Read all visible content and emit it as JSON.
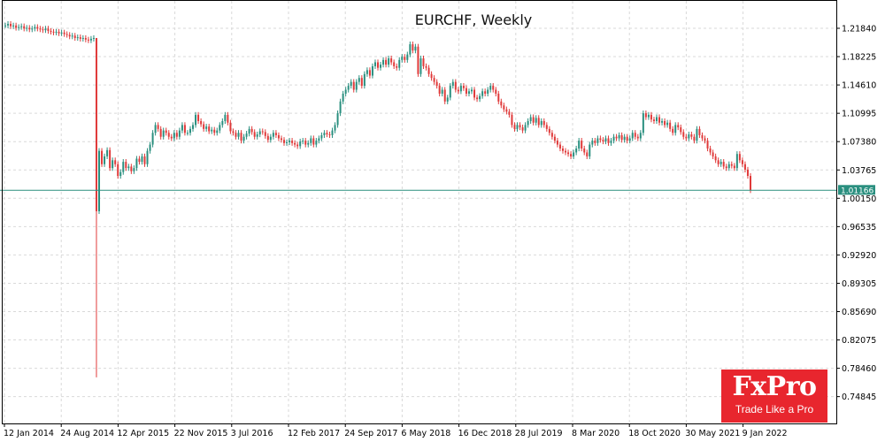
{
  "chart_data": {
    "type": "line",
    "title": "EURCHF, Weekly",
    "xlabel": "",
    "ylabel": "",
    "x_tick_labels": [
      "12 Jan 2014",
      "24 Aug 2014",
      "12 Apr 2015",
      "22 Nov 2015",
      "3 Jul 2016",
      "12 Feb 2017",
      "24 Sep 2017",
      "6 May 2018",
      "16 Dec 2018",
      "28 Jul 2019",
      "8 Mar 2020",
      "18 Oct 2020",
      "30 May 2021",
      "9 Jan 2022"
    ],
    "y_tick_labels": [
      "1.21840",
      "1.18225",
      "1.14610",
      "1.10995",
      "1.07380",
      "1.03765",
      "1.00150",
      "0.96535",
      "0.92920",
      "0.89305",
      "0.85690",
      "0.82075",
      "0.78460",
      "0.74845"
    ],
    "ylim": [
      0.725,
      1.24
    ],
    "current_price": "1.01166",
    "grid": true,
    "series": [
      {
        "values": [
          1.222,
          1.224,
          1.221,
          1.222,
          1.219,
          1.22,
          1.221,
          1.218,
          1.219,
          1.217,
          1.218,
          1.22,
          1.218,
          1.217,
          1.216,
          1.218,
          1.215,
          1.214,
          1.213,
          1.214,
          1.212,
          1.213,
          1.211,
          1.21,
          1.208,
          1.209,
          1.206,
          1.207,
          1.205,
          1.206,
          1.204,
          1.203,
          1.205,
          1.206,
          0.985,
          1.062,
          1.045,
          1.055,
          1.063,
          1.04,
          1.05,
          1.045,
          1.03,
          1.035,
          1.048,
          1.04,
          1.042,
          1.036,
          1.04,
          1.052,
          1.048,
          1.055,
          1.045,
          1.062,
          1.07,
          1.085,
          1.095,
          1.09,
          1.08,
          1.088,
          1.085,
          1.08,
          1.078,
          1.085,
          1.08,
          1.088,
          1.095,
          1.085,
          1.085,
          1.09,
          1.095,
          1.108,
          1.1,
          1.096,
          1.09,
          1.093,
          1.087,
          1.089,
          1.085,
          1.088,
          1.095,
          1.1,
          1.108,
          1.098,
          1.087,
          1.085,
          1.08,
          1.085,
          1.075,
          1.08,
          1.084,
          1.09,
          1.086,
          1.08,
          1.083,
          1.087,
          1.086,
          1.081,
          1.076,
          1.08,
          1.085,
          1.082,
          1.078,
          1.076,
          1.072,
          1.073,
          1.075,
          1.072,
          1.07,
          1.068,
          1.074,
          1.075,
          1.07,
          1.072,
          1.078,
          1.07,
          1.075,
          1.078,
          1.082,
          1.085,
          1.083,
          1.082,
          1.088,
          1.095,
          1.11,
          1.125,
          1.135,
          1.14,
          1.145,
          1.15,
          1.14,
          1.15,
          1.155,
          1.145,
          1.16,
          1.165,
          1.158,
          1.17,
          1.175,
          1.168,
          1.172,
          1.178,
          1.172,
          1.18,
          1.175,
          1.17,
          1.168,
          1.178,
          1.182,
          1.178,
          1.185,
          1.198,
          1.19,
          1.195,
          1.16,
          1.18,
          1.17,
          1.168,
          1.16,
          1.155,
          1.15,
          1.145,
          1.135,
          1.14,
          1.125,
          1.13,
          1.145,
          1.15,
          1.14,
          1.138,
          1.145,
          1.142,
          1.135,
          1.138,
          1.14,
          1.13,
          1.128,
          1.132,
          1.138,
          1.135,
          1.14,
          1.145,
          1.14,
          1.135,
          1.125,
          1.12,
          1.115,
          1.112,
          1.108,
          1.095,
          1.09,
          1.095,
          1.092,
          1.088,
          1.095,
          1.1,
          1.105,
          1.098,
          1.104,
          1.095,
          1.1,
          1.095,
          1.09,
          1.085,
          1.08,
          1.075,
          1.07,
          1.065,
          1.062,
          1.06,
          1.058,
          1.055,
          1.06,
          1.065,
          1.075,
          1.065,
          1.06,
          1.055,
          1.07,
          1.075,
          1.072,
          1.078,
          1.076,
          1.074,
          1.078,
          1.072,
          1.075,
          1.08,
          1.078,
          1.082,
          1.076,
          1.08,
          1.075,
          1.078,
          1.085,
          1.08,
          1.078,
          1.085,
          1.11,
          1.105,
          1.108,
          1.102,
          1.1,
          1.105,
          1.098,
          1.1,
          1.095,
          1.098,
          1.09,
          1.085,
          1.095,
          1.092,
          1.086,
          1.08,
          1.078,
          1.083,
          1.08,
          1.075,
          1.09,
          1.082,
          1.078,
          1.075,
          1.065,
          1.06,
          1.055,
          1.05,
          1.045,
          1.048,
          1.042,
          1.04,
          1.045,
          1.043,
          1.04,
          1.058,
          1.05,
          1.045,
          1.038,
          1.03,
          1.01166
        ]
      }
    ]
  },
  "logo": {
    "name": "FxPro",
    "tagline": "Trade Like a Pro"
  },
  "colors": {
    "up": "#2a8f7f",
    "down": "#e03a3a",
    "grid": "#d9d9d9",
    "price_line": "#2a8f7f",
    "axis": "#000000"
  }
}
